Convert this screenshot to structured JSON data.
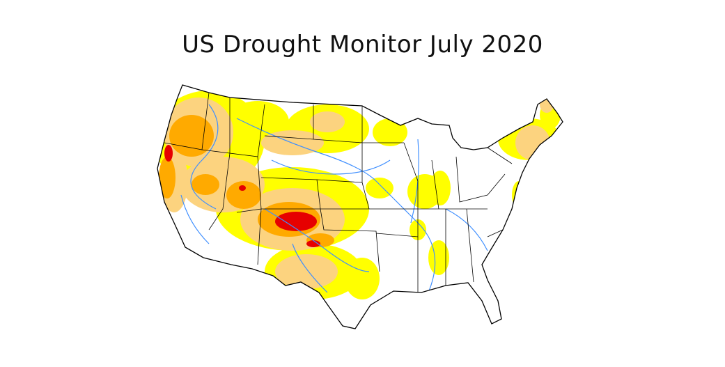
{
  "title": "US Drought Monitor July 2020",
  "map": {
    "region": "Contiguous United States",
    "colors": {
      "d0_abnormally_dry": "#FFFF00",
      "d1_moderate": "#FCD37F",
      "d2_severe": "#FFAA00",
      "d3_extreme": "#E60000",
      "rivers": "#3F8FFF",
      "borders": "#000000"
    }
  }
}
